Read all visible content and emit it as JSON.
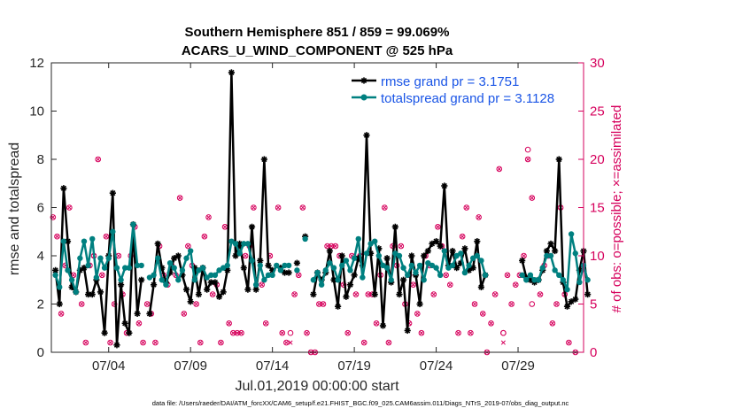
{
  "chart_data": {
    "type": "line",
    "title_line1": "Southern Hemisphere 851 / 859 = 99.069%",
    "title_line2": "ACARS_U_WIND_COMPONENT @ 525 hPa",
    "xlabel": "Jul.01,2019 00:00:00 start",
    "ylabel_left": "rmse and totalspread",
    "ylabel_right": "# of obs: o=possible; ×=assimilated",
    "xlim": [
      0,
      32.5
    ],
    "ylim_left": [
      0,
      12
    ],
    "ylim_right": [
      0,
      30
    ],
    "x_ticks": [
      3.5,
      8.5,
      13.5,
      18.5,
      23.5,
      28.5
    ],
    "x_tick_labels": [
      "07/04",
      "07/09",
      "07/14",
      "07/19",
      "07/24",
      "07/29"
    ],
    "y_ticks_left": [
      0,
      2,
      4,
      6,
      8,
      10,
      12
    ],
    "y_tick_labels_left": [
      "0",
      "2",
      "4",
      "6",
      "8",
      "10",
      "12"
    ],
    "y_ticks_right": [
      0,
      5,
      10,
      15,
      20,
      25,
      30
    ],
    "y_tick_labels_right": [
      "0",
      "5",
      "10",
      "15",
      "20",
      "25",
      "30"
    ],
    "x_step_days": 0.25,
    "series": [
      {
        "name": "rmse grand pr = 3.1751",
        "color": "#000000",
        "marker": "asterisk",
        "values": [
          3.4,
          2.0,
          6.8,
          4.6,
          2.7,
          2.5,
          3.4,
          3.5,
          2.4,
          2.4,
          3.0,
          2.5,
          0.8,
          4.0,
          6.6,
          0.3,
          2.8,
          1.2,
          0.8,
          5.3,
          1.6,
          3.0,
          null,
          1.6,
          2.8,
          4.5,
          3.5,
          2.9,
          3.3,
          3.9,
          4.0,
          3.2,
          2.6,
          2.1,
          3.5,
          2.4,
          3.5,
          2.6,
          2.9,
          2.9,
          2.3,
          2.5,
          3.4,
          11.6,
          4.0,
          4.5,
          3.5,
          2.6,
          5.2,
          2.6,
          3.8,
          8.0,
          3.6,
          3.4,
          null,
          3.5,
          3.3,
          3.3,
          null,
          3.7,
          null,
          4.8,
          null,
          2.4,
          3.3,
          3.0,
          3.3,
          4.2,
          3.0,
          1.9,
          4.0,
          2.3,
          2.8,
          3.2,
          3.9,
          3.6,
          9.0,
          4.1,
          2.4,
          4.3,
          1.1,
          3.9,
          2.9,
          5.2,
          2.4,
          3.0,
          0.9,
          4.0,
          3.2,
          2.0,
          4.0,
          4.2,
          4.5,
          4.6,
          4.4,
          6.9,
          3.6,
          4.2,
          3.5,
          3.7,
          4.3,
          3.4,
          3.5,
          4.6,
          2.7,
          3.2,
          null,
          null,
          null,
          null,
          null,
          null,
          null,
          null,
          3.8,
          3.1,
          3.0,
          2.9,
          3.0,
          3.4,
          4.2,
          4.5,
          4.2,
          8.0,
          2.9,
          1.9,
          2.1,
          2.2,
          3.4,
          4.2,
          2.4
        ]
      },
      {
        "name": "totalspread grand pr = 3.1128",
        "color": "#008080",
        "marker": "dot",
        "values": [
          3.2,
          2.7,
          4.6,
          3.4,
          3.0,
          2.5,
          3.9,
          4.6,
          3.6,
          4.7,
          3.1,
          3.9,
          3.5,
          3.9,
          5.0,
          3.5,
          3.0,
          3.5,
          3.5,
          5.3,
          3.6,
          3.6,
          null,
          3.1,
          3.2,
          3.9,
          3.0,
          2.8,
          3.7,
          3.5,
          3.0,
          3.4,
          3.9,
          4.2,
          3.0,
          3.4,
          3.5,
          3.1,
          3.2,
          3.2,
          3.4,
          3.5,
          3.6,
          4.6,
          4.5,
          4.1,
          4.5,
          4.5,
          3.8,
          2.8,
          3.6,
          3.0,
          3.2,
          3.2,
          3.6,
          3.4,
          3.6,
          3.6,
          null,
          3.4,
          null,
          4.7,
          null,
          3.0,
          3.3,
          2.8,
          3.4,
          3.7,
          3.5,
          3.0,
          3.6,
          3.8,
          3.4,
          3.9,
          4.7,
          3.1,
          4.1,
          4.5,
          4.6,
          4.0,
          3.6,
          3.5,
          3.0,
          4.1,
          4.0,
          3.5,
          3.2,
          3.6,
          3.3,
          3.6,
          3.0,
          3.7,
          3.6,
          3.5,
          3.2,
          4.2,
          3.5,
          3.6,
          4.0,
          4.1,
          3.3,
          3.6,
          3.9,
          4.0,
          3.8,
          3.2,
          null,
          null,
          null,
          null,
          null,
          null,
          null,
          null,
          3.2,
          3.0,
          3.2,
          3.0,
          3.0,
          3.5,
          4.0,
          4.0,
          3.4,
          3.2,
          3.0,
          2.6,
          4.9,
          4.1,
          2.9,
          3.6,
          3.0
        ]
      }
    ],
    "possible_obs": [
      [
        0.1,
        14
      ],
      [
        0.35,
        12
      ],
      [
        0.6,
        4
      ],
      [
        0.85,
        9
      ],
      [
        1.1,
        15
      ],
      [
        1.35,
        8
      ],
      [
        1.85,
        5
      ],
      [
        2.1,
        1
      ],
      [
        2.35,
        9
      ],
      [
        2.6,
        10
      ],
      [
        2.85,
        20
      ],
      [
        3.1,
        8
      ],
      [
        3.35,
        12
      ],
      [
        3.6,
        1
      ],
      [
        3.85,
        5
      ],
      [
        4.1,
        10
      ],
      [
        4.35,
        6
      ],
      [
        4.6,
        2
      ],
      [
        4.85,
        10
      ],
      [
        5.1,
        13
      ],
      [
        5.35,
        3
      ],
      [
        5.6,
        1
      ],
      [
        5.85,
        5
      ],
      [
        6.1,
        4
      ],
      [
        6.35,
        1
      ],
      [
        6.6,
        11
      ],
      [
        6.85,
        8
      ],
      [
        7.1,
        7
      ],
      [
        7.35,
        9
      ],
      [
        7.6,
        8
      ],
      [
        7.85,
        16
      ],
      [
        8.1,
        4
      ],
      [
        8.35,
        11
      ],
      [
        8.6,
        9
      ],
      [
        8.85,
        5
      ],
      [
        9.1,
        1
      ],
      [
        9.35,
        12
      ],
      [
        9.6,
        14
      ],
      [
        9.85,
        6
      ],
      [
        10.1,
        7
      ],
      [
        10.35,
        1
      ],
      [
        10.6,
        13
      ],
      [
        10.85,
        3
      ],
      [
        11.1,
        2
      ],
      [
        11.35,
        2
      ],
      [
        11.6,
        2
      ],
      [
        11.85,
        10
      ],
      [
        12.1,
        11
      ],
      [
        12.35,
        15
      ],
      [
        12.85,
        7
      ],
      [
        13.1,
        3
      ],
      [
        13.35,
        10
      ],
      [
        13.85,
        15
      ],
      [
        14.1,
        2
      ],
      [
        14.35,
        1
      ],
      [
        14.85,
        6
      ],
      [
        15.1,
        8
      ],
      [
        15.35,
        15
      ],
      [
        15.6,
        2
      ],
      [
        15.85,
        0
      ],
      [
        16.1,
        0
      ],
      [
        16.35,
        5
      ],
      [
        16.6,
        5
      ],
      [
        16.85,
        11
      ],
      [
        17.1,
        11
      ],
      [
        17.35,
        11
      ],
      [
        17.6,
        10
      ],
      [
        17.85,
        7
      ],
      [
        18.1,
        2
      ],
      [
        18.35,
        10
      ],
      [
        18.6,
        6
      ],
      [
        18.85,
        10
      ],
      [
        19.1,
        1
      ],
      [
        19.35,
        6
      ],
      [
        19.6,
        6
      ],
      [
        19.85,
        3
      ],
      [
        20.1,
        8
      ],
      [
        20.35,
        15
      ],
      [
        20.6,
        1
      ],
      [
        20.85,
        11
      ],
      [
        21.1,
        9
      ],
      [
        21.35,
        11
      ],
      [
        21.6,
        5
      ],
      [
        21.85,
        3
      ],
      [
        22.1,
        7
      ],
      [
        22.35,
        4
      ],
      [
        22.6,
        2
      ],
      [
        22.85,
        10
      ],
      [
        23.1,
        9
      ],
      [
        23.35,
        6
      ],
      [
        23.6,
        13
      ],
      [
        23.85,
        11
      ],
      [
        24.1,
        8
      ],
      [
        24.35,
        7
      ],
      [
        24.85,
        2
      ],
      [
        25.1,
        12
      ],
      [
        25.35,
        15
      ],
      [
        25.6,
        2
      ],
      [
        25.85,
        5
      ],
      [
        26.1,
        14
      ],
      [
        26.35,
        4
      ],
      [
        26.6,
        0
      ],
      [
        26.85,
        3
      ],
      [
        27.1,
        6
      ],
      [
        27.35,
        19
      ],
      [
        27.6,
        2
      ],
      [
        27.85,
        8
      ],
      [
        28.1,
        5
      ],
      [
        28.35,
        7
      ],
      [
        28.6,
        8
      ],
      [
        28.85,
        10
      ],
      [
        29.1,
        20
      ],
      [
        29.35,
        16
      ],
      [
        29.85,
        6
      ],
      [
        30.1,
        9
      ],
      [
        30.35,
        10
      ],
      [
        30.6,
        3
      ],
      [
        30.85,
        5
      ],
      [
        31.1,
        15
      ],
      [
        31.35,
        6
      ],
      [
        31.6,
        1
      ],
      [
        32.0,
        0
      ],
      [
        14.6,
        2
      ],
      [
        21.85,
        8
      ],
      [
        27.6,
        2
      ],
      [
        29.1,
        21
      ],
      [
        29.35,
        5
      ]
    ],
    "assimilated_obs": [
      [
        0.1,
        14
      ],
      [
        0.35,
        12
      ],
      [
        0.6,
        4
      ],
      [
        0.85,
        9
      ],
      [
        1.1,
        15
      ],
      [
        1.35,
        8
      ],
      [
        1.85,
        5
      ],
      [
        2.1,
        1
      ],
      [
        2.35,
        9
      ],
      [
        2.6,
        10
      ],
      [
        2.85,
        20
      ],
      [
        3.1,
        8
      ],
      [
        3.35,
        12
      ],
      [
        3.6,
        1
      ],
      [
        3.85,
        5
      ],
      [
        4.1,
        10
      ],
      [
        4.35,
        6
      ],
      [
        4.6,
        2
      ],
      [
        4.85,
        10
      ],
      [
        5.1,
        13
      ],
      [
        5.35,
        3
      ],
      [
        5.6,
        1
      ],
      [
        5.85,
        5
      ],
      [
        6.1,
        4
      ],
      [
        6.35,
        1
      ],
      [
        6.6,
        11
      ],
      [
        6.85,
        8
      ],
      [
        7.1,
        7
      ],
      [
        7.35,
        9
      ],
      [
        7.6,
        8
      ],
      [
        7.85,
        16
      ],
      [
        8.1,
        4
      ],
      [
        8.35,
        11
      ],
      [
        8.6,
        9
      ],
      [
        8.85,
        5
      ],
      [
        9.1,
        1
      ],
      [
        9.35,
        12
      ],
      [
        9.6,
        14
      ],
      [
        9.85,
        6
      ],
      [
        10.1,
        7
      ],
      [
        10.35,
        1
      ],
      [
        10.6,
        13
      ],
      [
        10.85,
        3
      ],
      [
        11.1,
        2
      ],
      [
        11.35,
        2
      ],
      [
        11.6,
        2
      ],
      [
        11.85,
        10
      ],
      [
        12.1,
        11
      ],
      [
        12.35,
        15
      ],
      [
        12.85,
        7
      ],
      [
        13.1,
        3
      ],
      [
        13.35,
        10
      ],
      [
        13.85,
        15
      ],
      [
        14.1,
        2
      ],
      [
        14.35,
        1
      ],
      [
        14.6,
        1
      ],
      [
        14.85,
        6
      ],
      [
        15.1,
        8
      ],
      [
        15.35,
        15
      ],
      [
        15.6,
        2
      ],
      [
        15.85,
        0
      ],
      [
        16.1,
        0
      ],
      [
        16.35,
        5
      ],
      [
        16.6,
        5
      ],
      [
        16.85,
        11
      ],
      [
        17.1,
        11
      ],
      [
        17.35,
        11
      ],
      [
        17.6,
        10
      ],
      [
        17.85,
        7
      ],
      [
        18.1,
        2
      ],
      [
        18.35,
        10
      ],
      [
        18.6,
        6
      ],
      [
        18.85,
        10
      ],
      [
        19.1,
        1
      ],
      [
        19.35,
        6
      ],
      [
        19.6,
        6
      ],
      [
        19.85,
        3
      ],
      [
        20.1,
        8
      ],
      [
        20.35,
        15
      ],
      [
        20.6,
        1
      ],
      [
        20.85,
        11
      ],
      [
        21.1,
        9
      ],
      [
        21.35,
        11
      ],
      [
        21.6,
        5
      ],
      [
        21.85,
        3
      ],
      [
        22.1,
        7
      ],
      [
        22.35,
        4
      ],
      [
        22.6,
        2
      ],
      [
        22.85,
        10
      ],
      [
        23.1,
        9
      ],
      [
        23.35,
        6
      ],
      [
        23.6,
        13
      ],
      [
        23.85,
        11
      ],
      [
        24.1,
        8
      ],
      [
        24.35,
        7
      ],
      [
        24.85,
        2
      ],
      [
        25.1,
        12
      ],
      [
        25.35,
        15
      ],
      [
        25.6,
        2
      ],
      [
        25.85,
        5
      ],
      [
        26.1,
        14
      ],
      [
        26.35,
        4
      ],
      [
        26.6,
        0
      ],
      [
        26.85,
        3
      ],
      [
        27.1,
        6
      ],
      [
        27.35,
        19
      ],
      [
        27.6,
        1
      ],
      [
        27.85,
        8
      ],
      [
        28.1,
        5
      ],
      [
        28.35,
        7
      ],
      [
        28.6,
        8
      ],
      [
        28.85,
        10
      ],
      [
        29.1,
        20
      ],
      [
        29.35,
        16
      ],
      [
        29.85,
        6
      ],
      [
        30.1,
        9
      ],
      [
        30.35,
        10
      ],
      [
        30.6,
        3
      ],
      [
        30.85,
        5
      ],
      [
        31.1,
        15
      ],
      [
        31.35,
        6
      ],
      [
        31.6,
        1
      ],
      [
        32.0,
        0
      ]
    ],
    "obs_color": "#d6005c",
    "legend_position": "top-right",
    "footer": "data file: /Users/raeder/DAI/ATM_forcXX/CAM6_setup/f.e21.FHIST_BGC.f09_025.CAM6assim.011/Diags_NTrS_2019-07/obs_diag_output.nc"
  }
}
